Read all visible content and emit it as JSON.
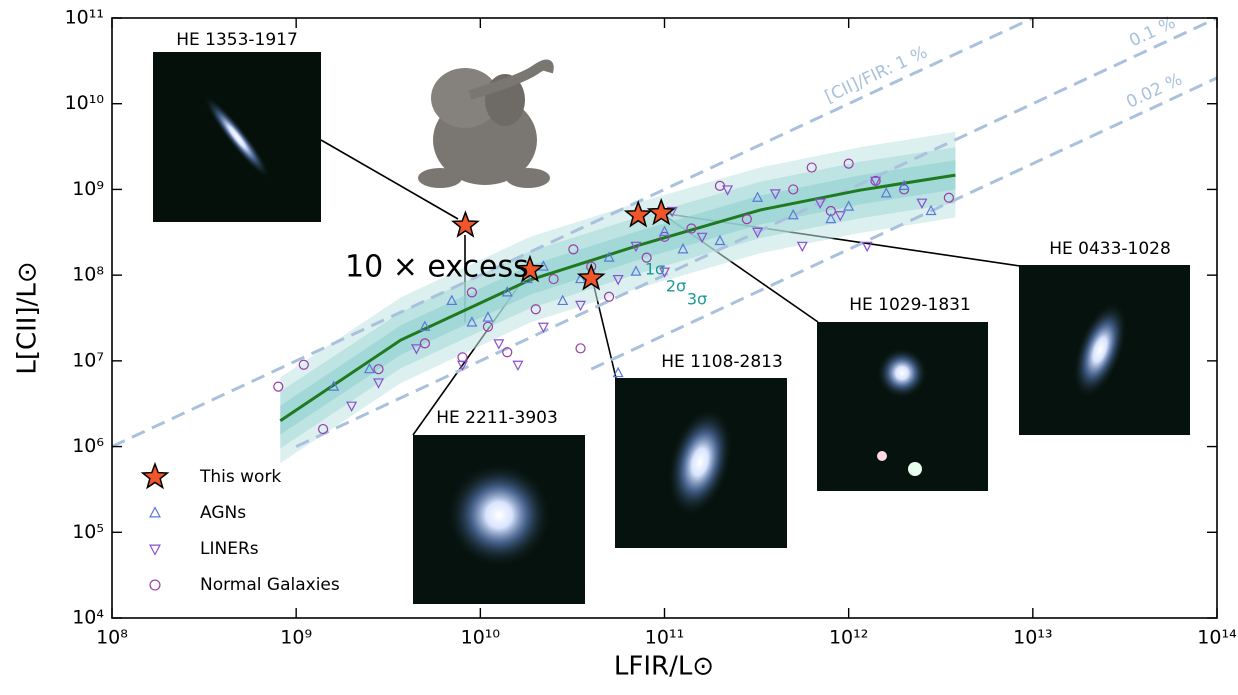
{
  "chart_data": {
    "type": "scatter",
    "x_label": "LFIR/L⊙",
    "y_label": "L[CII]/L⊙",
    "log_x": true,
    "log_y": true,
    "xlim": [
      100000000.0,
      100000000000000.0
    ],
    "ylim": [
      10000.0,
      100000000000.0
    ],
    "xticks": [
      {
        "value": 100000000.0,
        "label": "10⁸"
      },
      {
        "value": 1000000000.0,
        "label": "10⁹"
      },
      {
        "value": 10000000000.0,
        "label": "10¹⁰"
      },
      {
        "value": 100000000000.0,
        "label": "10¹¹"
      },
      {
        "value": 1000000000000.0,
        "label": "10¹²"
      },
      {
        "value": 10000000000000.0,
        "label": "10¹³"
      },
      {
        "value": 100000000000000.0,
        "label": "10¹⁴"
      }
    ],
    "yticks": [
      {
        "value": 10000.0,
        "label": "10⁴"
      },
      {
        "value": 100000.0,
        "label": "10⁵"
      },
      {
        "value": 1000000.0,
        "label": "10⁶"
      },
      {
        "value": 10000000.0,
        "label": "10⁷"
      },
      {
        "value": 100000000.0,
        "label": "10⁸"
      },
      {
        "value": 1000000000.0,
        "label": "10⁹"
      },
      {
        "value": 10000000000.0,
        "label": "10¹⁰"
      },
      {
        "value": 100000000000.0,
        "label": "10¹¹"
      }
    ],
    "legend": "lower left",
    "series": [
      {
        "name": "This work",
        "marker": "star",
        "color": "#f0562a",
        "x": [
          8300000000.0,
          18600000000.0,
          40000000000.0,
          72000000000.0,
          96000000000.0
        ],
        "y": [
          380000000.0,
          115000000.0,
          92000000.0,
          500000000.0,
          530000000.0
        ]
      },
      {
        "name": "AGNs",
        "marker": "triangle-up",
        "color": "#5a78d8",
        "x": [
          1600000000.0,
          2500000000.0,
          5000000000.0,
          7000000000.0,
          9000000000.0,
          11000000000.0,
          14000000000.0,
          18000000000.0,
          22000000000.0,
          28000000000.0,
          35000000000.0,
          50000000000.0,
          56000000000.0,
          70000000000.0,
          100000000000.0,
          126000000000.0,
          200000000000.0,
          320000000000.0,
          500000000000.0,
          800000000000.0,
          1000000000000.0,
          1600000000000.0,
          2000000000000.0,
          2800000000000.0
        ],
        "y": [
          5000000.0,
          8000000.0,
          25000000.0,
          50000000.0,
          28000000.0,
          32000000.0,
          63000000.0,
          90000000.0,
          126000000.0,
          50000000.0,
          90000000.0,
          160000000.0,
          7200000.0,
          110000000.0,
          320000000.0,
          200000000.0,
          250000000.0,
          800000000.0,
          500000000.0,
          450000000.0,
          630000000.0,
          900000000.0,
          1100000000.0,
          560000000.0
        ]
      },
      {
        "name": "LINERs",
        "marker": "triangle-down",
        "color": "#8a4fd0",
        "x": [
          2000000000.0,
          2800000000.0,
          4500000000.0,
          8000000000.0,
          12600000000.0,
          16000000000.0,
          22000000000.0,
          35000000000.0,
          56000000000.0,
          70000000000.0,
          100000000000.0,
          110000000000.0,
          160000000000.0,
          220000000000.0,
          320000000000.0,
          560000000000.0,
          700000000000.0,
          900000000000.0,
          1400000000000.0,
          2500000000000.0,
          1260000000000.0,
          400000000000.0
        ],
        "y": [
          3000000.0,
          5600000.0,
          14000000.0,
          9000000.0,
          16000000.0,
          9000000.0,
          25000000.0,
          45000000.0,
          90000000.0,
          220000000.0,
          110000000.0,
          560000000.0,
          280000000.0,
          1000000000.0,
          320000000.0,
          220000000.0,
          700000000.0,
          500000000.0,
          1260000000.0,
          700000000.0,
          220000000.0,
          900000000.0
        ]
      },
      {
        "name": "Normal Galaxies",
        "marker": "circle",
        "color": "#9b3aa6",
        "x": [
          800000000.0,
          1100000000.0,
          1400000000.0,
          2800000000.0,
          5000000000.0,
          8000000000.0,
          9000000000.0,
          11000000000.0,
          14000000000.0,
          20000000000.0,
          25000000000.0,
          32000000000.0,
          40000000000.0,
          50000000000.0,
          80000000000.0,
          100000000000.0,
          140000000000.0,
          200000000000.0,
          280000000000.0,
          500000000000.0,
          630000000000.0,
          800000000000.0,
          1000000000000.0,
          1400000000000.0,
          2000000000000.0,
          3500000000000.0,
          35000000000.0
        ],
        "y": [
          5000000.0,
          9000000.0,
          1600000.0,
          8000000.0,
          16000000.0,
          11000000.0,
          63000000.0,
          25000000.0,
          12600000.0,
          40000000.0,
          90000000.0,
          200000000.0,
          126000000.0,
          56000000.0,
          160000000.0,
          280000000.0,
          350000000.0,
          1100000000.0,
          450000000.0,
          1000000000.0,
          1800000000.0,
          560000000.0,
          2000000000.0,
          1260000000.0,
          1000000000.0,
          800000000.0,
          14000000.0
        ]
      }
    ],
    "fit": {
      "color": "#1f7a1f",
      "x": [
        820000000.0,
        3700000000.0,
        18600000000.0,
        73000000000.0,
        330000000000.0,
        1150000000000.0,
        3800000000000.0
      ],
      "y": [
        2000000.0,
        17500000.0,
        88000000.0,
        224000000.0,
        575000000.0,
        980000000.0,
        1470000000.0
      ]
    },
    "bands": [
      {
        "label": "3σ",
        "color": "#bfe3e3",
        "x": [
          820000000.0,
          3700000000.0,
          18600000000.0,
          73000000000.0,
          330000000000.0,
          1150000000000.0,
          3800000000000.0
        ],
        "lower": [
          640000.0,
          5500000.0,
          28000000.0,
          71000000.0,
          180000000.0,
          310000000.0,
          470000000.0
        ],
        "upper": [
          6400000.0,
          55000000.0,
          280000000.0,
          710000000.0,
          1800000000.0,
          3100000000.0,
          4700000000.0
        ]
      },
      {
        "label": "2σ",
        "color": "#a6d9d9",
        "x": [
          820000000.0,
          3700000000.0,
          18600000000.0,
          73000000000.0,
          330000000000.0,
          1150000000000.0,
          3800000000000.0
        ],
        "lower": [
          950000.0,
          8200000.0,
          41000000.0,
          105000000.0,
          270000000.0,
          460000000.0,
          690000000.0
        ],
        "upper": [
          4400000.0,
          37000000.0,
          190000000.0,
          480000000.0,
          1230000000.0,
          2100000000.0,
          3100000000.0
        ]
      },
      {
        "label": "1σ",
        "color": "#8ccfcf",
        "x": [
          820000000.0,
          3700000000.0,
          18600000000.0,
          73000000000.0,
          330000000000.0,
          1150000000000.0,
          3800000000000.0
        ],
        "lower": [
          1380000.0,
          11800000.0,
          59000000.0,
          152000000.0,
          390000000.0,
          670000000.0,
          1000000000.0
        ],
        "upper": [
          3000000.0,
          26000000.0,
          130000000.0,
          330000000.0,
          850000000.0,
          1460000000.0,
          2200000000.0
        ]
      }
    ],
    "ratio_lines": [
      {
        "label": "[CII]/FIR: 1 %",
        "color": "#a9c1dd",
        "x": [
          100000000.0,
          10000000000000.0
        ],
        "y": [
          1000000.0,
          100000000000.0
        ]
      },
      {
        "label": "0.1 %",
        "color": "#a9c1dd",
        "x": [
          1000000000.0,
          100000000000000.0
        ],
        "y": [
          1000000.0,
          100000000000.0
        ]
      },
      {
        "label": "0.02 %",
        "color": "#a9c1dd",
        "x": [
          40000000000.0,
          100000000000000.0
        ],
        "y": [
          8000000.0,
          20000000000.0
        ]
      }
    ],
    "annotation": "10 × excess",
    "insets": [
      {
        "label": "HE 1353-1917"
      },
      {
        "label": "HE 2211-3903"
      },
      {
        "label": "HE 1108-2813"
      },
      {
        "label": "HE 1029-1831"
      },
      {
        "label": "HE 0433-1028"
      }
    ]
  }
}
